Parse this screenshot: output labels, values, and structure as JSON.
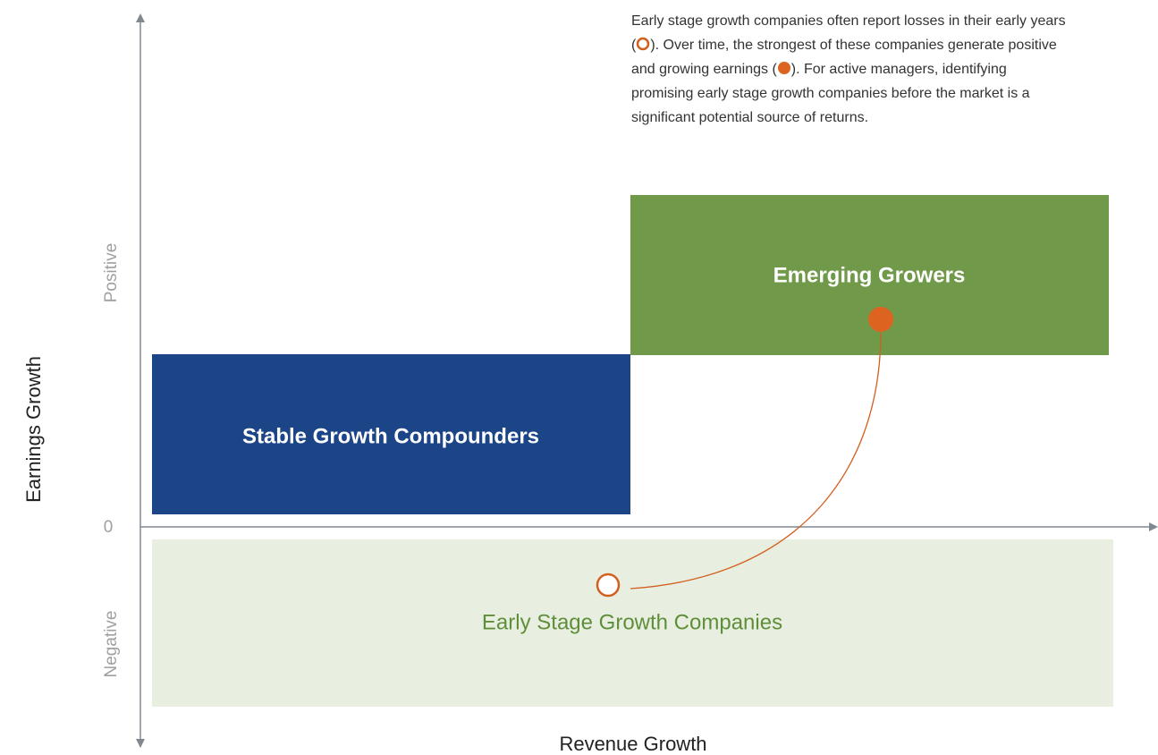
{
  "axes": {
    "y_title": "Earnings Growth",
    "x_title": "Revenue Growth",
    "y_positive": "Positive",
    "y_zero": "0",
    "y_negative": "Negative"
  },
  "quadrants": [
    {
      "label": "Emerging Growers"
    },
    {
      "label": "Stable Growth Compounders"
    },
    {
      "label": "Early Stage Growth Companies"
    }
  ],
  "annotation": {
    "parts": [
      "Early stage growth companies often report losses in their early years (",
      "). Over time, the strongest of these companies generate positive and growing earnings (",
      "). For active managers, identifying promising early stage growth companies before the market is a significant potential source of returns."
    ]
  }
}
